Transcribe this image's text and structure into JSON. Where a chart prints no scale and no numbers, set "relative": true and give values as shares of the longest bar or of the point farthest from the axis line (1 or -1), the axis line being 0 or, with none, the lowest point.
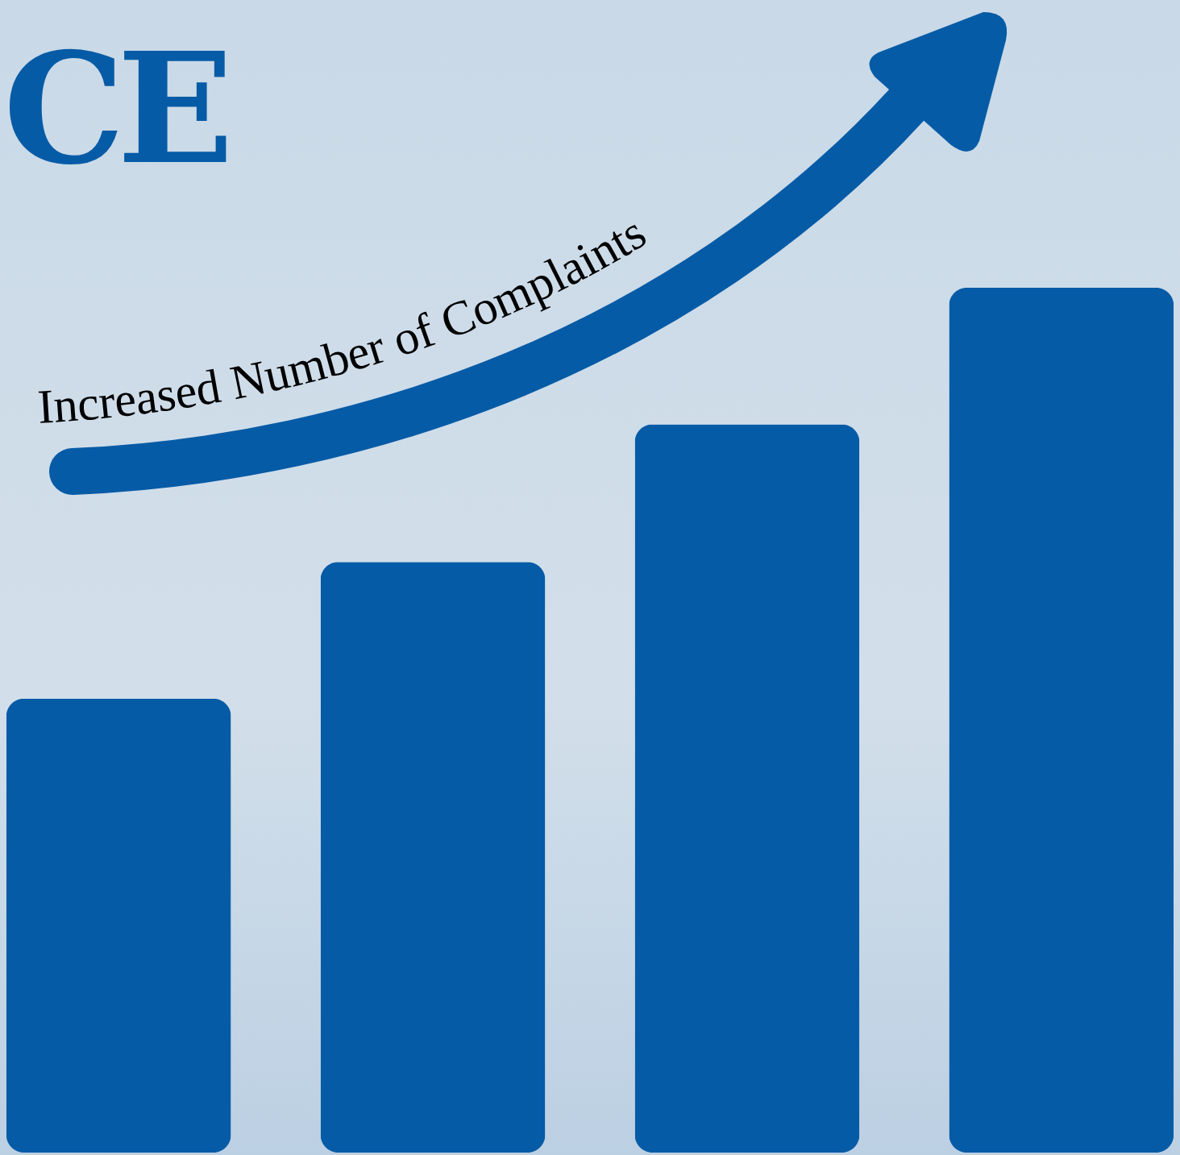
{
  "chart_data": {
    "type": "bar",
    "title": "CE",
    "categories": [
      null,
      null,
      null,
      null
    ],
    "values": [
      0.525,
      0.683,
      0.842,
      1
    ],
    "color": "#065ba6",
    "relative": true,
    "annotations": [
      "Increased Number of Complaints"
    ]
  }
}
